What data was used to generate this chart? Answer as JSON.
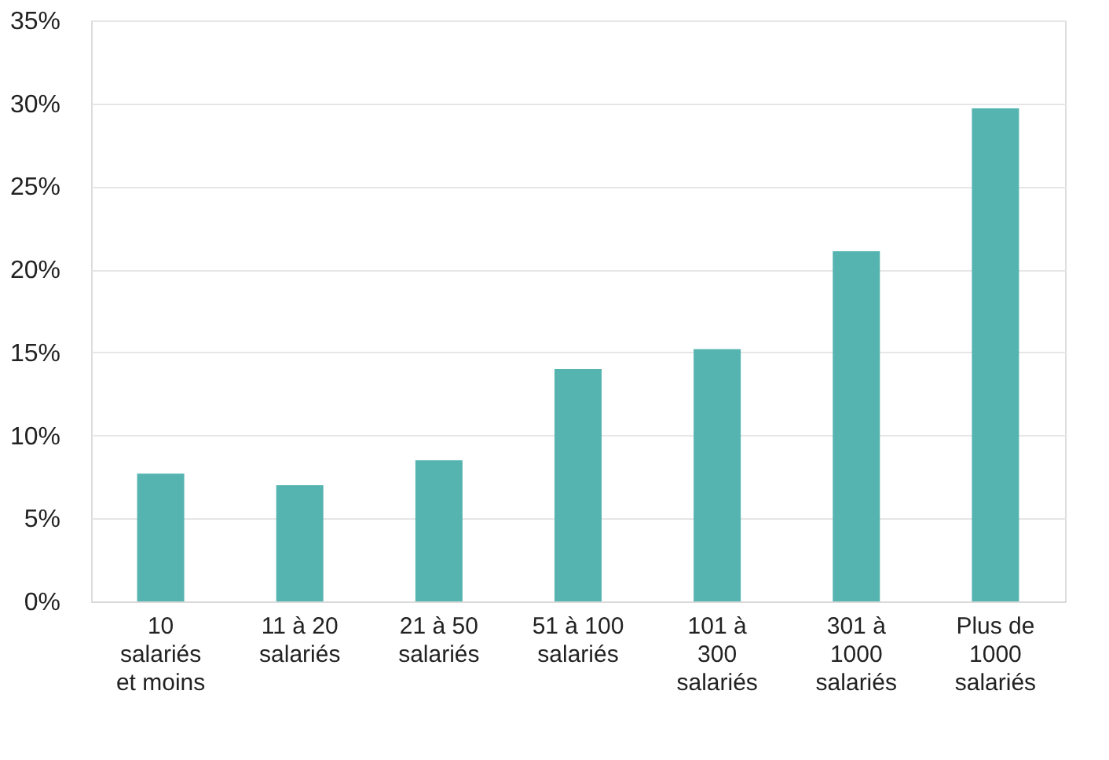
{
  "chart_data": {
    "type": "bar",
    "categories": [
      "10\nsalariés\net moins",
      "11 à 20\nsalariés",
      "21 à 50\nsalariés",
      "51 à 100\nsalariés",
      "101 à\n300\nsalariés",
      "301 à\n1000\nsalariés",
      "Plus de\n1000\nsalariés"
    ],
    "values": [
      7.7,
      7.0,
      8.5,
      14.0,
      15.2,
      21.1,
      29.7
    ],
    "color": "#55b4b0",
    "ylim": [
      0,
      35
    ],
    "yticks": [
      {
        "value": 0,
        "label": "0%"
      },
      {
        "value": 5,
        "label": "5%"
      },
      {
        "value": 10,
        "label": "10%"
      },
      {
        "value": 15,
        "label": "15%"
      },
      {
        "value": 20,
        "label": "20%"
      },
      {
        "value": 25,
        "label": "25%"
      },
      {
        "value": 30,
        "label": "30%"
      },
      {
        "value": 35,
        "label": "35%"
      }
    ],
    "grid": "y"
  }
}
